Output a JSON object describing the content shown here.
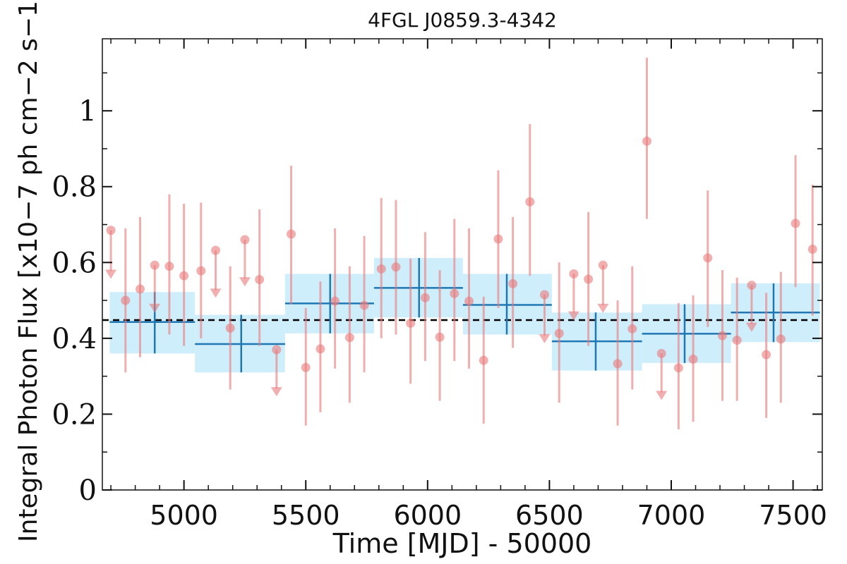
{
  "chart_data": {
    "type": "scatter",
    "title": "4FGL J0859.3-4342",
    "xlabel": "Time [MJD] - 50000",
    "ylabel": "Integral Photon Flux [x10−7 ph cm−2 s−1]",
    "xlim": [
      4665,
      7620
    ],
    "ylim": [
      0,
      1.19
    ],
    "xticks": [
      5000,
      5500,
      6000,
      6500,
      7000,
      7500
    ],
    "xtick_labels": [
      "5000",
      "5500",
      "6000",
      "6500",
      "7000",
      "7500"
    ],
    "yticks": [
      0,
      0.2,
      0.4,
      0.6,
      0.8,
      1
    ],
    "ytick_labels": [
      "0",
      "0.2",
      "0.4",
      "0.6",
      "0.8",
      "1"
    ],
    "grid": false,
    "mean_flux": 0.448,
    "series": [
      {
        "role": "fine_bins",
        "color": "#e87a7a",
        "points": [
          {
            "x": 4700,
            "y": 0.685,
            "upper_limit": true,
            "arrow_to": 0.57
          },
          {
            "x": 4760,
            "y": 0.5,
            "lo": 0.31,
            "hi": 0.69
          },
          {
            "x": 4820,
            "y": 0.53,
            "lo": 0.35,
            "hi": 0.72
          },
          {
            "x": 4880,
            "y": 0.593,
            "upper_limit": true,
            "arrow_to": 0.48
          },
          {
            "x": 4940,
            "y": 0.59,
            "lo": 0.41,
            "hi": 0.78
          },
          {
            "x": 5000,
            "y": 0.565,
            "lo": 0.38,
            "hi": 0.755
          },
          {
            "x": 5070,
            "y": 0.578,
            "lo": 0.4,
            "hi": 0.758
          },
          {
            "x": 5130,
            "y": 0.632,
            "upper_limit": true,
            "arrow_to": 0.52
          },
          {
            "x": 5190,
            "y": 0.427,
            "lo": 0.265,
            "hi": 0.59
          },
          {
            "x": 5250,
            "y": 0.66,
            "upper_limit": true,
            "arrow_to": 0.55
          },
          {
            "x": 5310,
            "y": 0.555,
            "lo": 0.38,
            "hi": 0.74
          },
          {
            "x": 5380,
            "y": 0.37,
            "upper_limit": true,
            "arrow_to": 0.26
          },
          {
            "x": 5440,
            "y": 0.675,
            "lo": 0.49,
            "hi": 0.855
          },
          {
            "x": 5500,
            "y": 0.323,
            "lo": 0.17,
            "hi": 0.48
          },
          {
            "x": 5560,
            "y": 0.372,
            "lo": 0.205,
            "hi": 0.55
          },
          {
            "x": 5620,
            "y": 0.498,
            "lo": 0.32,
            "hi": 0.69
          },
          {
            "x": 5680,
            "y": 0.402,
            "lo": 0.23,
            "hi": 0.59
          },
          {
            "x": 5740,
            "y": 0.487,
            "lo": 0.31,
            "hi": 0.67
          },
          {
            "x": 5810,
            "y": 0.583,
            "lo": 0.4,
            "hi": 0.77
          },
          {
            "x": 5870,
            "y": 0.588,
            "lo": 0.41,
            "hi": 0.765
          },
          {
            "x": 5930,
            "y": 0.44,
            "lo": 0.28,
            "hi": 0.61
          },
          {
            "x": 5990,
            "y": 0.507,
            "lo": 0.34,
            "hi": 0.68
          },
          {
            "x": 6050,
            "y": 0.403,
            "lo": 0.235,
            "hi": 0.58
          },
          {
            "x": 6110,
            "y": 0.518,
            "lo": 0.34,
            "hi": 0.715
          },
          {
            "x": 6170,
            "y": 0.498,
            "lo": 0.32,
            "hi": 0.69
          },
          {
            "x": 6230,
            "y": 0.342,
            "lo": 0.175,
            "hi": 0.51
          },
          {
            "x": 6290,
            "y": 0.662,
            "lo": 0.48,
            "hi": 0.843
          },
          {
            "x": 6350,
            "y": 0.544,
            "lo": 0.375,
            "hi": 0.72
          },
          {
            "x": 6420,
            "y": 0.76,
            "lo": 0.565,
            "hi": 0.965
          },
          {
            "x": 6480,
            "y": 0.515,
            "upper_limit": true,
            "arrow_to": 0.4
          },
          {
            "x": 6540,
            "y": 0.413,
            "lo": 0.23,
            "hi": 0.6
          },
          {
            "x": 6600,
            "y": 0.57,
            "upper_limit": true,
            "arrow_to": 0.46
          },
          {
            "x": 6660,
            "y": 0.556,
            "lo": 0.38,
            "hi": 0.733
          },
          {
            "x": 6720,
            "y": 0.593,
            "upper_limit": true,
            "arrow_to": 0.48
          },
          {
            "x": 6780,
            "y": 0.333,
            "lo": 0.17,
            "hi": 0.5
          },
          {
            "x": 6840,
            "y": 0.425,
            "lo": 0.265,
            "hi": 0.59
          },
          {
            "x": 6900,
            "y": 0.92,
            "lo": 0.715,
            "hi": 1.14
          },
          {
            "x": 6960,
            "y": 0.36,
            "upper_limit": true,
            "arrow_to": 0.25
          },
          {
            "x": 7030,
            "y": 0.322,
            "lo": 0.16,
            "hi": 0.493
          },
          {
            "x": 7090,
            "y": 0.345,
            "lo": 0.18,
            "hi": 0.513
          },
          {
            "x": 7150,
            "y": 0.612,
            "lo": 0.43,
            "hi": 0.79
          },
          {
            "x": 7210,
            "y": 0.407,
            "lo": 0.235,
            "hi": 0.58
          },
          {
            "x": 7270,
            "y": 0.395,
            "lo": 0.235,
            "hi": 0.56
          },
          {
            "x": 7330,
            "y": 0.54,
            "upper_limit": true,
            "arrow_to": 0.43
          },
          {
            "x": 7390,
            "y": 0.357,
            "lo": 0.19,
            "hi": 0.52
          },
          {
            "x": 7450,
            "y": 0.398,
            "lo": 0.23,
            "hi": 0.575
          },
          {
            "x": 7510,
            "y": 0.703,
            "lo": 0.535,
            "hi": 0.883
          },
          {
            "x": 7580,
            "y": 0.635,
            "lo": 0.46,
            "hi": 0.805
          }
        ]
      },
      {
        "role": "coarse_bins",
        "color": "#1f77b4",
        "band_color": "#cfeefc",
        "bins": [
          {
            "x0": 4695,
            "x1": 5045,
            "xc": 4880,
            "y": 0.443,
            "lo": 0.36,
            "hi": 0.522
          },
          {
            "x0": 5045,
            "x1": 5415,
            "xc": 5235,
            "y": 0.385,
            "lo": 0.31,
            "hi": 0.462
          },
          {
            "x0": 5415,
            "x1": 5780,
            "xc": 5600,
            "y": 0.492,
            "lo": 0.413,
            "hi": 0.57
          },
          {
            "x0": 5780,
            "x1": 6145,
            "xc": 5965,
            "y": 0.533,
            "lo": 0.455,
            "hi": 0.612
          },
          {
            "x0": 6145,
            "x1": 6510,
            "xc": 6325,
            "y": 0.488,
            "lo": 0.41,
            "hi": 0.57
          },
          {
            "x0": 6510,
            "x1": 6880,
            "xc": 6690,
            "y": 0.392,
            "lo": 0.315,
            "hi": 0.468
          },
          {
            "x0": 6880,
            "x1": 7245,
            "xc": 7055,
            "y": 0.412,
            "lo": 0.335,
            "hi": 0.49
          },
          {
            "x0": 7245,
            "x1": 7610,
            "xc": 7420,
            "y": 0.468,
            "lo": 0.39,
            "hi": 0.545
          }
        ]
      }
    ]
  }
}
